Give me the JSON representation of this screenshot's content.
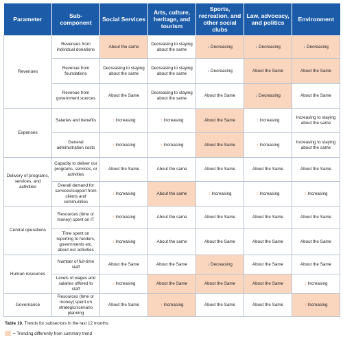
{
  "colors": {
    "header_bg": "#1b5ba8",
    "highlight": "#fbd6bf",
    "increase_arrow": "#d9702c",
    "decrease_arrow": "#1b4f93"
  },
  "headers": [
    "Parameter",
    "Sub-component",
    "Social Services",
    "Arts, culture, heritage, and tourism",
    "Sports, recreation, and other social clubs",
    "Law, advocacy, and politics",
    "Environment"
  ],
  "rows": [
    {
      "param": "Revenues",
      "span": 3,
      "sub": "Revenues from individual donations",
      "h": 34,
      "cells": [
        {
          "text": "About the same",
          "hl": true
        },
        {
          "text": "Decreasing to staying about the same"
        },
        {
          "text": "Decreasing",
          "dir": "down",
          "hl": true
        },
        {
          "text": "Decreasing",
          "dir": "down",
          "hl": true
        },
        {
          "text": "Decreasing",
          "dir": "down",
          "hl": true
        }
      ]
    },
    {
      "sub": "Revenue from foundations",
      "h": 36,
      "cells": [
        {
          "text": "Decreasing to staying about the same"
        },
        {
          "text": "Decreasing to staying about the same"
        },
        {
          "text": "Decreasing",
          "dir": "down"
        },
        {
          "text": "About the Same",
          "hl": true
        },
        {
          "text": "About the Same",
          "hl": true
        }
      ]
    },
    {
      "sub": "Revenue from government sources",
      "h": 37,
      "cells": [
        {
          "text": "About the Same"
        },
        {
          "text": "Decreasing to staying about the same"
        },
        {
          "text": "About the Same"
        },
        {
          "text": "Decreasing",
          "dir": "down",
          "hl": true
        },
        {
          "text": "About the Same"
        }
      ]
    },
    {
      "param": "Expenses",
      "span": 2,
      "sub": "Salaries and benefits",
      "h": 35,
      "cells": [
        {
          "text": "Increasing",
          "dir": "up"
        },
        {
          "text": "Increasing",
          "dir": "up"
        },
        {
          "text": "About the Same",
          "hl": true
        },
        {
          "text": "Increasing",
          "dir": "up"
        },
        {
          "text": "Increasing to staying about the same"
        }
      ]
    },
    {
      "sub": "General administration costs",
      "h": 36,
      "cells": [
        {
          "text": "Increasing",
          "dir": "up"
        },
        {
          "text": "Increasing",
          "dir": "up"
        },
        {
          "text": "About the Same",
          "hl": true
        },
        {
          "text": "Increasing",
          "dir": "up"
        },
        {
          "text": "Increasing to staying about the same"
        }
      ]
    },
    {
      "param": "Delivery of programs, services, and activities",
      "span": 2,
      "sub": "Capacity to deliver our programs, services, or activities",
      "h": 35,
      "cells": [
        {
          "text": "About the Same"
        },
        {
          "text": "About the same"
        },
        {
          "text": "About the Same"
        },
        {
          "text": "About the Same"
        },
        {
          "text": "About the Same"
        }
      ]
    },
    {
      "sub": "Overall demand for services/support from clients and communities",
      "h": 36,
      "cells": [
        {
          "text": "Increasing",
          "dir": "up"
        },
        {
          "text": "About the same",
          "hl": true
        },
        {
          "text": "Increasing",
          "dir": "up"
        },
        {
          "text": "Increasing",
          "dir": "up"
        },
        {
          "text": "Increasing",
          "dir": "up"
        }
      ]
    },
    {
      "param": "Central operations",
      "span": 2,
      "sub": "Resources (time or money) spent on IT",
      "h": 33,
      "cells": [
        {
          "text": "Increasing",
          "dir": "up"
        },
        {
          "text": "About the same"
        },
        {
          "text": "About the Same"
        },
        {
          "text": "About the Same"
        },
        {
          "text": "About the Same"
        }
      ]
    },
    {
      "sub": "Time spent on reporting to funders, governments etc. about our activities",
      "h": 38,
      "cells": [
        {
          "text": "Increasing",
          "dir": "up"
        },
        {
          "text": "About the same"
        },
        {
          "text": "About the Same"
        },
        {
          "text": "About the Same"
        },
        {
          "text": "About the Same"
        }
      ]
    },
    {
      "param": "Human resources",
      "span": 2,
      "sub": "Number of full-time staff",
      "h": 28,
      "cells": [
        {
          "text": "About the Same"
        },
        {
          "text": "About the Same"
        },
        {
          "text": "Decreasing",
          "dir": "down",
          "hl": true
        },
        {
          "text": "About the Same"
        },
        {
          "text": "About the Same"
        }
      ]
    },
    {
      "sub": "Levels of wages and salaries offered to staff",
      "h": 28,
      "cells": [
        {
          "text": "Increasing",
          "dir": "up"
        },
        {
          "text": "About the Same",
          "hl": true
        },
        {
          "text": "About the Same",
          "hl": true
        },
        {
          "text": "About the Same",
          "hl": true
        },
        {
          "text": "Increasing",
          "dir": "up"
        }
      ]
    },
    {
      "param": "Governance",
      "span": 1,
      "sub": "Resources (time or money) spent on strategic/scenario planning",
      "h": 34,
      "cells": [
        {
          "text": "About the Same"
        },
        {
          "text": "Increasing",
          "dir": "up",
          "hl": true
        },
        {
          "text": "About the Same"
        },
        {
          "text": "About the Same"
        },
        {
          "text": "Increasing",
          "dir": "up",
          "hl": true
        }
      ]
    }
  ],
  "caption": {
    "label": "Table 10.",
    "text": " Trends for subsectors in the last 12 months"
  },
  "legend": {
    "text": "= Trending differently from summary trend"
  }
}
